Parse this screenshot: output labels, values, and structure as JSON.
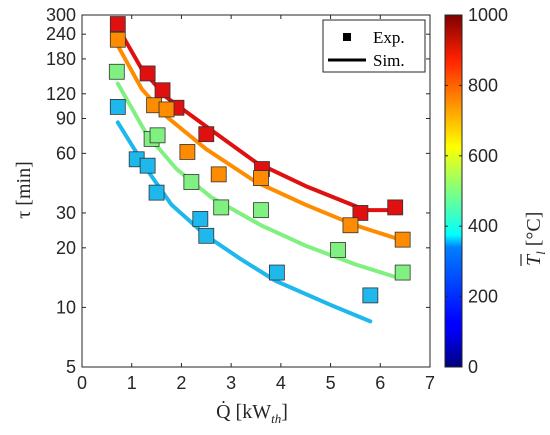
{
  "chart_data": {
    "type": "scatter",
    "title": "",
    "xlabel": "Q̇ [kW",
    "xlabel_sub": "th",
    "xlabel_end": "]",
    "ylabel": "τ [min]",
    "xlim": [
      0,
      7
    ],
    "ylim": [
      5,
      300
    ],
    "yscale": "log",
    "xticks": [
      "0",
      "1",
      "2",
      "3",
      "4",
      "5",
      "6",
      "7"
    ],
    "yticks": [
      "5",
      "10",
      "20",
      "30",
      "60",
      "90",
      "120",
      "180",
      "240",
      "300"
    ],
    "ytick_values": [
      5,
      10,
      20,
      30,
      60,
      90,
      120,
      180,
      240,
      300
    ],
    "grid": false,
    "legend": {
      "position": "top-right",
      "markers_label": "Exp.",
      "line_label": "Sim."
    },
    "colorbar": {
      "label_main": "T",
      "label_sub": "l",
      "label_unit": " [°C]",
      "range": [
        0,
        1000
      ],
      "ticks": [
        "0",
        "200",
        "400",
        "600",
        "800",
        "1000"
      ],
      "tick_values": [
        0,
        200,
        400,
        600,
        800,
        1000
      ]
    },
    "series": [
      {
        "color": "#e01010",
        "experiment": [
          [
            0.72,
            270
          ],
          [
            1.32,
            152
          ],
          [
            1.62,
            125
          ],
          [
            1.9,
            102
          ],
          [
            2.5,
            75
          ],
          [
            3.62,
            50
          ],
          [
            5.6,
            30
          ],
          [
            6.3,
            32
          ]
        ],
        "simulation": [
          [
            0.72,
            260
          ],
          [
            1.2,
            160
          ],
          [
            1.7,
            115
          ],
          [
            2.5,
            82
          ],
          [
            3.5,
            54
          ],
          [
            4.5,
            41
          ],
          [
            5.7,
            31
          ],
          [
            6.3,
            31
          ]
        ]
      },
      {
        "color": "#ff8c00",
        "experiment": [
          [
            0.72,
            225
          ],
          [
            1.45,
            105
          ],
          [
            1.7,
            100
          ],
          [
            2.12,
            61
          ],
          [
            2.75,
            47
          ],
          [
            3.6,
            45
          ],
          [
            5.4,
            26
          ],
          [
            6.45,
            22
          ]
        ],
        "simulation": [
          [
            0.72,
            210
          ],
          [
            1.2,
            127
          ],
          [
            1.7,
            92
          ],
          [
            2.5,
            63
          ],
          [
            3.5,
            43
          ],
          [
            4.5,
            33
          ],
          [
            5.5,
            26
          ],
          [
            6.4,
            22
          ]
        ]
      },
      {
        "color": "#80f080",
        "experiment": [
          [
            0.7,
            155
          ],
          [
            1.4,
            71
          ],
          [
            1.52,
            74
          ],
          [
            2.2,
            43
          ],
          [
            2.8,
            32
          ],
          [
            3.6,
            31
          ],
          [
            5.15,
            19.5
          ],
          [
            6.45,
            15
          ]
        ],
        "simulation": [
          [
            0.72,
            135
          ],
          [
            1.3,
            75
          ],
          [
            1.9,
            50
          ],
          [
            2.6,
            36
          ],
          [
            3.6,
            26
          ],
          [
            4.5,
            20.5
          ],
          [
            5.5,
            16.5
          ],
          [
            6.4,
            14
          ]
        ]
      },
      {
        "color": "#1eb8ec",
        "experiment": [
          [
            0.72,
            103
          ],
          [
            1.1,
            56
          ],
          [
            1.32,
            52
          ],
          [
            1.5,
            38
          ],
          [
            2.38,
            28
          ],
          [
            2.5,
            23
          ],
          [
            3.92,
            15
          ],
          [
            5.8,
            11.5
          ]
        ],
        "simulation": [
          [
            0.72,
            86
          ],
          [
            1.3,
            50
          ],
          [
            1.8,
            33
          ],
          [
            2.5,
            23
          ],
          [
            3.2,
            17.5
          ],
          [
            3.9,
            13.6
          ],
          [
            5.0,
            10.3
          ],
          [
            5.8,
            8.5
          ]
        ]
      }
    ]
  }
}
